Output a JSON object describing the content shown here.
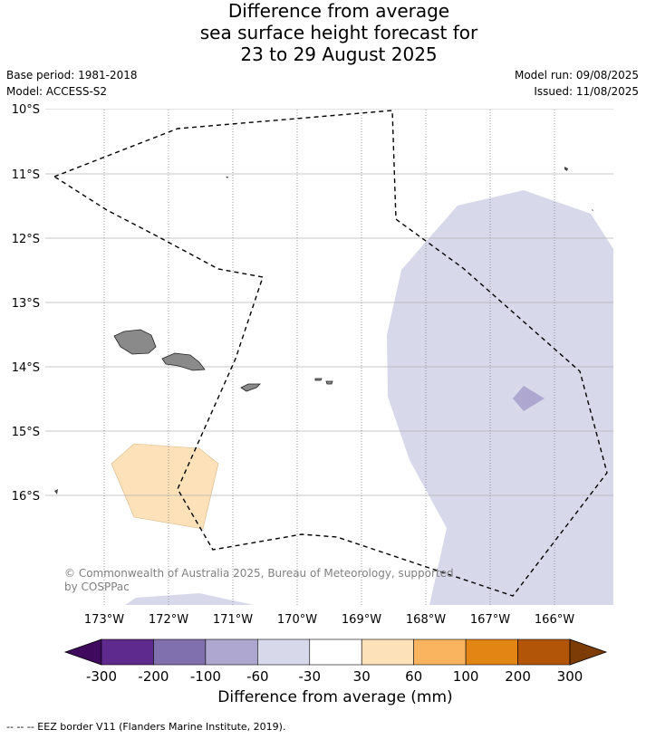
{
  "title": {
    "line1": "Difference from average",
    "line2": "sea surface height forecast for",
    "line3": "23 to 29 August 2025"
  },
  "meta": {
    "base_period": "Base period: 1981-2018",
    "model": "Model: ACCESS-S2",
    "model_run": "Model run: 09/08/2025",
    "issued": "Issued: 11/08/2025"
  },
  "map": {
    "lat_labels": [
      "10°S",
      "11°S",
      "12°S",
      "13°S",
      "14°S",
      "15°S",
      "16°S"
    ],
    "lon_labels": [
      "173°W",
      "172°W",
      "171°W",
      "170°W",
      "169°W",
      "168°W",
      "167°W",
      "166°W"
    ],
    "lat_range": [
      -10,
      -17.8
    ],
    "lon_range": [
      -173.8,
      -165.1
    ],
    "copyright": "© Commonwealth of Australia 2025, Bureau of Meteorology, supported by COSPPac"
  },
  "colorbar": {
    "tick_labels": [
      "-300",
      "-200",
      "-100",
      "-60",
      "-30",
      "30",
      "60",
      "100",
      "200",
      "300"
    ],
    "colors": [
      "#3f0a5e",
      "#5e2a8e",
      "#8070ad",
      "#aea7cf",
      "#d7d8ea",
      "#ffffff",
      "#fde1b8",
      "#fab45f",
      "#e38514",
      "#b25508",
      "#7d3b05"
    ],
    "label": "Difference from average (mm)"
  },
  "footer": "--  --  -- EEZ border V11 (Flanders Marine Institute, 2019)."
}
